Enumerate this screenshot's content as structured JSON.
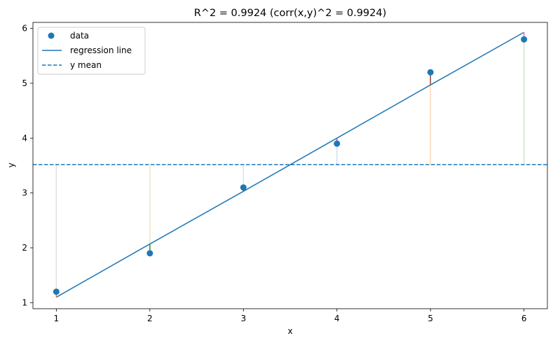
{
  "chart_data": {
    "type": "scatter",
    "title": "R^2 = 0.9924   (corr(x,y)^2 = 0.9924)",
    "xlabel": "x",
    "ylabel": "y",
    "xlim": [
      0.75,
      6.25
    ],
    "ylim": [
      0.89,
      6.11
    ],
    "xticks": [
      1,
      2,
      3,
      4,
      5,
      6
    ],
    "yticks": [
      1,
      2,
      3,
      4,
      5,
      6
    ],
    "grid": false,
    "legend_position": "top-left",
    "series": [
      {
        "name": "data",
        "kind": "scatter",
        "color": "#1f77b4",
        "x": [
          1,
          2,
          3,
          4,
          5,
          6
        ],
        "y": [
          1.2,
          1.9,
          3.1,
          3.9,
          5.2,
          5.8
        ]
      },
      {
        "name": "regression line",
        "kind": "line",
        "color": "#1f77b4",
        "x": [
          1,
          2,
          3,
          4,
          5,
          6
        ],
        "y": [
          1.1,
          2.07,
          3.03,
          4.0,
          4.97,
          5.93
        ]
      },
      {
        "name": "y mean",
        "kind": "hline",
        "color": "#1f77b4",
        "style": "dashed",
        "y": 3.5167
      }
    ],
    "total_deviation_colors": [
      "#c7c7c7",
      "#dbdb8d",
      "#9edae5",
      "#aec7e8",
      "#ffbb78",
      "#98df8a"
    ],
    "residual_colors": [
      "#ff7f0e",
      "#2ca02c",
      "#d62728",
      "#9467bd",
      "#8c564b",
      "#e377c2"
    ]
  }
}
